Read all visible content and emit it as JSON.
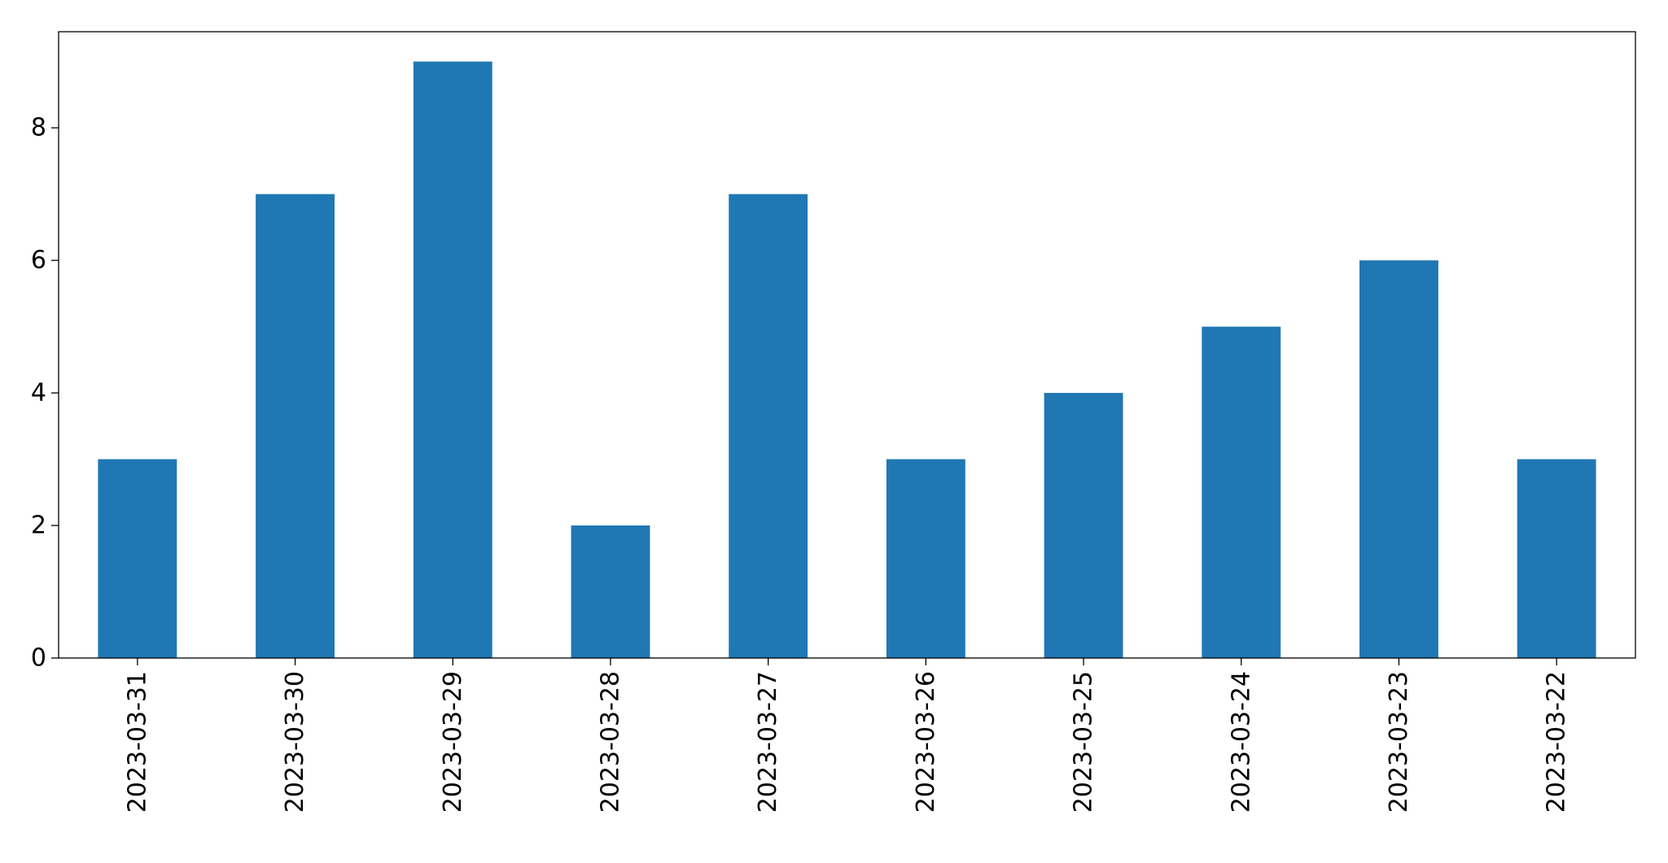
{
  "chart_data": {
    "type": "bar",
    "title": "",
    "xlabel": "",
    "ylabel": "",
    "categories": [
      "2023-03-31",
      "2023-03-30",
      "2023-03-29",
      "2023-03-28",
      "2023-03-27",
      "2023-03-26",
      "2023-03-25",
      "2023-03-24",
      "2023-03-23",
      "2023-03-22"
    ],
    "values": [
      3,
      7,
      9,
      2,
      7,
      3,
      4,
      5,
      6,
      3
    ],
    "ylim": [
      0,
      9.45
    ],
    "yticks": [
      0,
      2,
      4,
      6,
      8
    ],
    "grid": false,
    "bar_color": "#1f77b4"
  }
}
